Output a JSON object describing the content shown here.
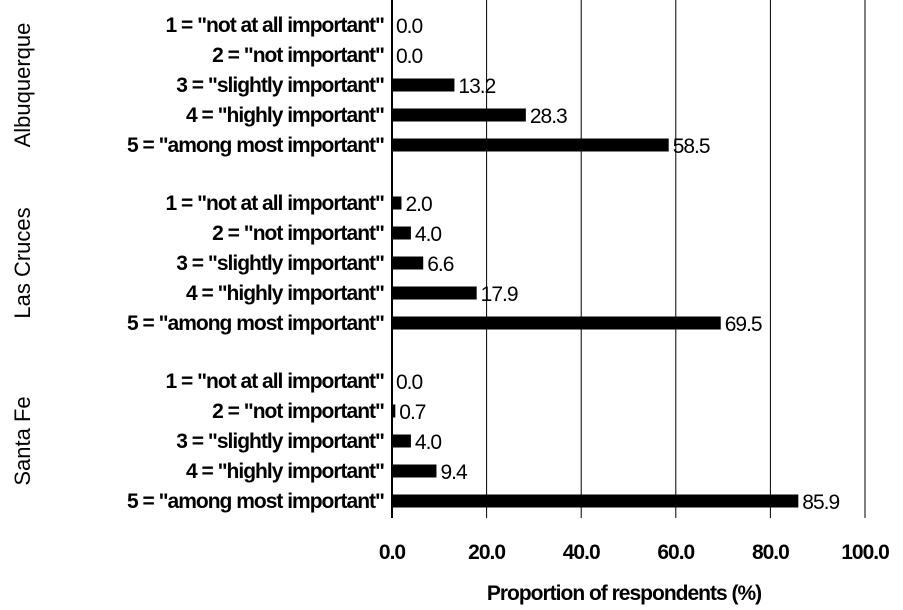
{
  "chart_data": {
    "type": "bar",
    "orientation": "horizontal",
    "xlabel": "Proportion of respondents (%)",
    "xlim": [
      0,
      100
    ],
    "xticks": [
      "0.0",
      "20.0",
      "40.0",
      "60.0",
      "80.0",
      "100.0"
    ],
    "grid": true,
    "categories": [
      "1 = \"not at all important\"",
      "2 = \"not important\"",
      "3 = \"slightly important\"",
      "4 = \"highly important\"",
      "5 = \"among most important\""
    ],
    "groups": [
      {
        "name": "Albuquerque",
        "values": [
          0.0,
          0.0,
          13.2,
          28.3,
          58.5
        ],
        "labels": [
          "0.0",
          "0.0",
          "13.2",
          "28.3",
          "58.5"
        ]
      },
      {
        "name": "Las Cruces",
        "values": [
          2.0,
          4.0,
          6.6,
          17.9,
          69.5
        ],
        "labels": [
          "2.0",
          "4.0",
          "6.6",
          "17.9",
          "69.5"
        ]
      },
      {
        "name": "Santa Fe",
        "values": [
          0.0,
          0.7,
          4.0,
          9.4,
          85.9
        ],
        "labels": [
          "0.0",
          "0.7",
          "4.0",
          "9.4",
          "85.9"
        ]
      }
    ],
    "colors": {
      "bar": "#000000",
      "grid": "#000000",
      "background": "#ffffff"
    }
  }
}
